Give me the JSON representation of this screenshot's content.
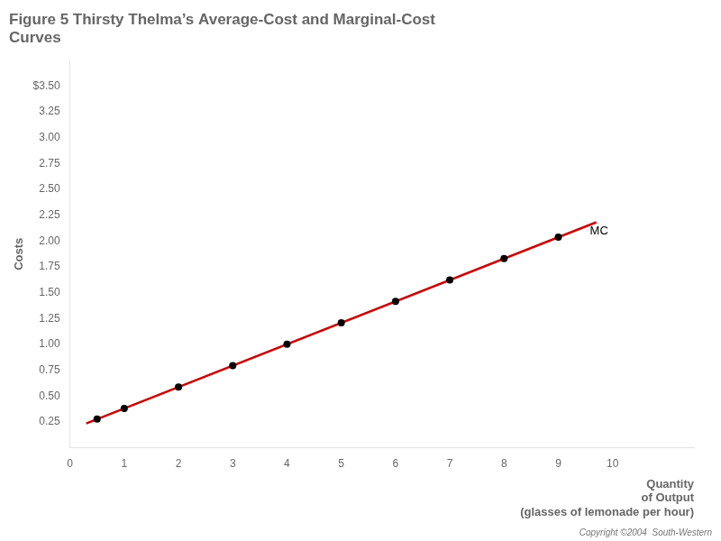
{
  "chart_data": {
    "type": "scatter",
    "title": "Figure 5 Thirsty Thelma’s Average-Cost and Marginal-Cost\nCurves",
    "ylabel": "Costs",
    "xlabel": "Quantity\nof Output\n(glasses of lemonade per hour)",
    "footnote": "Copyright ©2004  South-Western",
    "series": [
      {
        "type": "line",
        "line_style": "solid",
        "color": "#cc0000",
        "x": [
          0.3,
          9.7
        ],
        "values": [
          0.2371,
          2.1829
        ]
      },
      {
        "type": "scatter",
        "marker": "circle",
        "color": "#000000",
        "x": [
          0.5,
          1,
          2,
          3,
          4,
          5,
          6,
          7,
          8,
          9
        ],
        "values": [
          0.2785,
          0.382,
          0.589,
          0.796,
          1.003,
          1.21,
          1.417,
          1.624,
          1.831,
          2.038
        ]
      }
    ],
    "annotations": [
      {
        "text": "MC",
        "x": 9.55,
        "y": 2.1
      }
    ],
    "xlim": [
      0,
      11.5
    ],
    "xticks": [
      0,
      1,
      2,
      3,
      4,
      5,
      6,
      7,
      8,
      9,
      10
    ],
    "ylim": [
      0,
      3.75
    ],
    "yticks": [
      0.25,
      {
        "value": 0.5,
        "label": "0.50"
      },
      0.75,
      {
        "value": 1.0,
        "label": "1.00"
      },
      1.25,
      {
        "value": 1.5,
        "label": "1.50"
      },
      1.75,
      {
        "value": 2.0,
        "label": "2.00"
      },
      2.25,
      {
        "value": 2.5,
        "label": "2.50"
      },
      2.75,
      {
        "value": 3.0,
        "label": "3.00"
      },
      3.25,
      {
        "value": 3.5,
        "label": "$3.50"
      }
    ],
    "grid": false
  }
}
